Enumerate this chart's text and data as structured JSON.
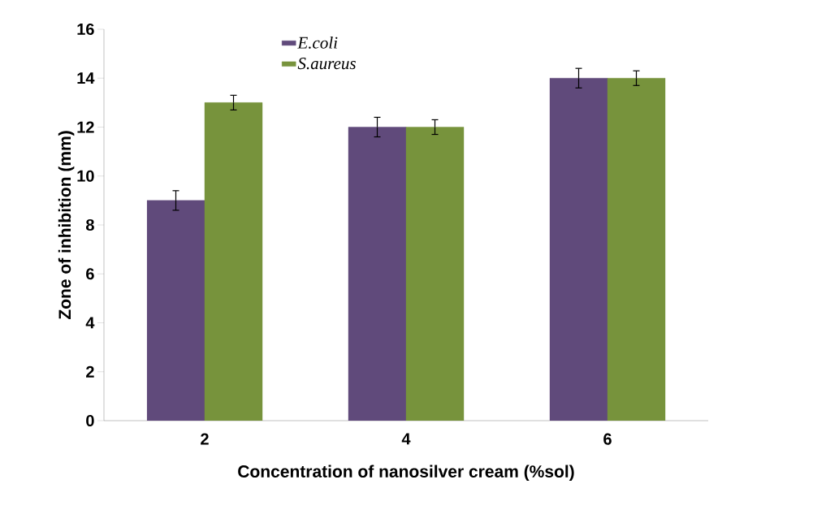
{
  "chart_data": {
    "type": "bar",
    "xlabel": "Concentration of nanosilver cream (%sol)",
    "ylabel": "Zone of inhibition (mm)",
    "categories": [
      "2",
      "4",
      "6"
    ],
    "series": [
      {
        "name": "E.coli",
        "color": "#604a7b",
        "values": [
          9,
          12,
          14
        ],
        "errors": [
          0.4,
          0.4,
          0.4
        ]
      },
      {
        "name": "S.aureus",
        "color": "#77933c",
        "values": [
          13,
          12,
          14
        ],
        "errors": [
          0.3,
          0.3,
          0.3
        ]
      }
    ],
    "ylim": [
      0,
      16
    ],
    "yticks": [
      0,
      2,
      4,
      6,
      8,
      10,
      12,
      14,
      16
    ],
    "legend": "top left",
    "grid": false
  }
}
